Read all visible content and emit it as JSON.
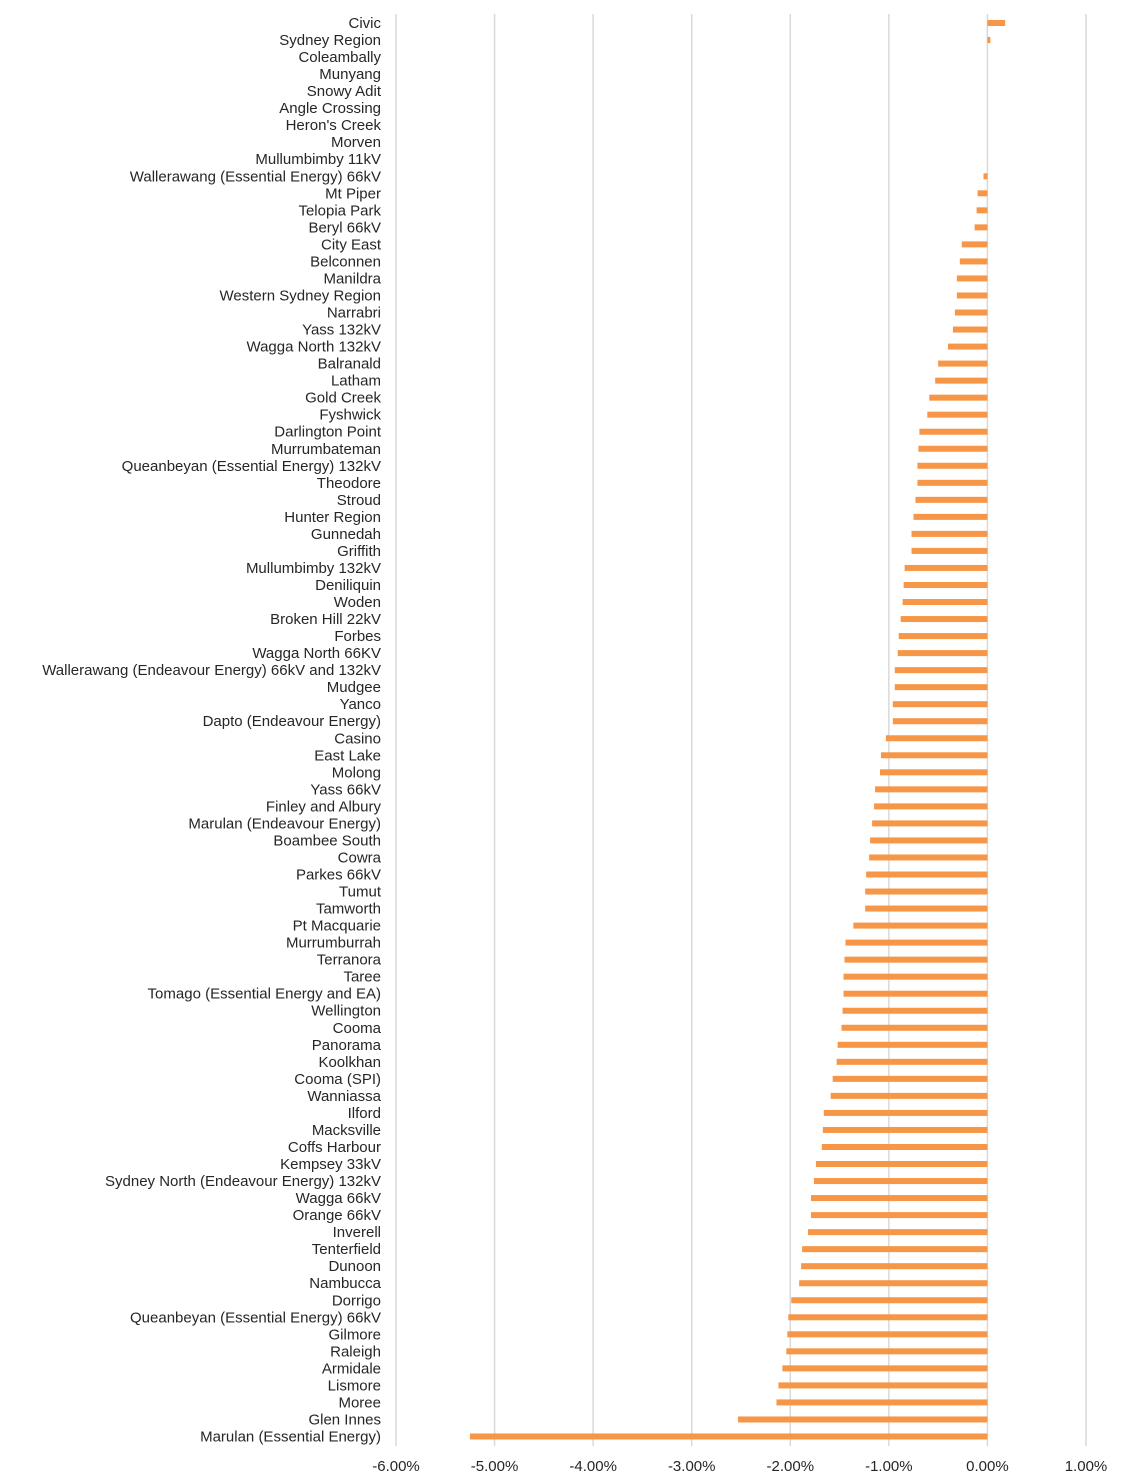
{
  "chart_data": {
    "type": "bar",
    "orientation": "horizontal",
    "title": "",
    "xlabel": "",
    "ylabel": "",
    "xlim": [
      -6,
      1
    ],
    "grid": true,
    "bar_color": "#f79646",
    "grid_color": "#d9d9d9",
    "text_color": "#262626",
    "x_ticks": [
      -6,
      -5,
      -4,
      -3,
      -2,
      -1,
      0,
      1
    ],
    "x_tick_labels": [
      "-6.00%",
      "-5.00%",
      "-4.00%",
      "-3.00%",
      "-2.00%",
      "-1.00%",
      "0.00%",
      "1.00%"
    ],
    "categories": [
      "Civic",
      "Sydney Region",
      "Coleambally",
      "Munyang",
      "Snowy Adit",
      "Angle Crossing",
      "Heron's Creek",
      "Morven",
      "Mullumbimby 11kV",
      "Wallerawang (Essential Energy) 66kV",
      "Mt Piper",
      "Telopia Park",
      "Beryl 66kV",
      "City East",
      "Belconnen",
      "Manildra",
      "Western Sydney Region",
      "Narrabri",
      "Yass 132kV",
      "Wagga North 132kV",
      "Balranald",
      "Latham",
      "Gold Creek",
      "Fyshwick",
      "Darlington Point",
      "Murrumbateman",
      "Queanbeyan (Essential Energy) 132kV",
      "Theodore",
      "Stroud",
      "Hunter Region",
      "Gunnedah",
      "Griffith",
      "Mullumbimby 132kV",
      "Deniliquin",
      "Woden",
      "Broken Hill 22kV",
      "Forbes",
      "Wagga North 66KV",
      "Wallerawang (Endeavour Energy) 66kV and 132kV",
      "Mudgee",
      "Yanco",
      "Dapto (Endeavour Energy)",
      "Casino",
      "East Lake",
      "Molong",
      "Yass 66kV",
      "Finley and Albury",
      "Marulan (Endeavour Energy)",
      "Boambee South",
      "Cowra",
      "Parkes 66kV",
      "Tumut",
      "Tamworth",
      "Pt Macquarie",
      "Murrumburrah",
      "Terranora",
      "Taree",
      "Tomago (Essential Energy and EA)",
      "Wellington",
      "Cooma",
      "Panorama",
      "Koolkhan",
      "Cooma (SPI)",
      "Wanniassa",
      "Ilford",
      "Macksville",
      "Coffs Harbour",
      "Kempsey 33kV",
      "Sydney North (Endeavour Energy) 132kV",
      "Wagga 66kV",
      "Orange 66kV",
      "Inverell",
      "Tenterfield",
      "Dunoon",
      "Nambucca",
      "Dorrigo",
      "Queanbeyan (Essential Energy) 66kV",
      "Gilmore",
      "Raleigh",
      "Armidale",
      "Lismore",
      "Moree",
      "Glen Innes",
      "Marulan (Essential Energy)"
    ],
    "values": [
      0.18,
      0.03,
      0,
      0,
      0,
      0,
      0,
      0,
      0,
      -0.04,
      -0.1,
      -0.11,
      -0.13,
      -0.26,
      -0.28,
      -0.31,
      -0.31,
      -0.33,
      -0.35,
      -0.4,
      -0.5,
      -0.53,
      -0.59,
      -0.61,
      -0.69,
      -0.7,
      -0.71,
      -0.71,
      -0.73,
      -0.75,
      -0.77,
      -0.77,
      -0.84,
      -0.85,
      -0.86,
      -0.88,
      -0.9,
      -0.91,
      -0.94,
      -0.94,
      -0.96,
      -0.96,
      -1.03,
      -1.08,
      -1.09,
      -1.14,
      -1.15,
      -1.17,
      -1.19,
      -1.2,
      -1.23,
      -1.24,
      -1.24,
      -1.36,
      -1.44,
      -1.45,
      -1.46,
      -1.46,
      -1.47,
      -1.48,
      -1.52,
      -1.53,
      -1.57,
      -1.59,
      -1.66,
      -1.67,
      -1.68,
      -1.74,
      -1.76,
      -1.79,
      -1.79,
      -1.82,
      -1.88,
      -1.89,
      -1.91,
      -1.99,
      -2.02,
      -2.03,
      -2.04,
      -2.08,
      -2.12,
      -2.14,
      -2.53,
      -5.25
    ]
  }
}
